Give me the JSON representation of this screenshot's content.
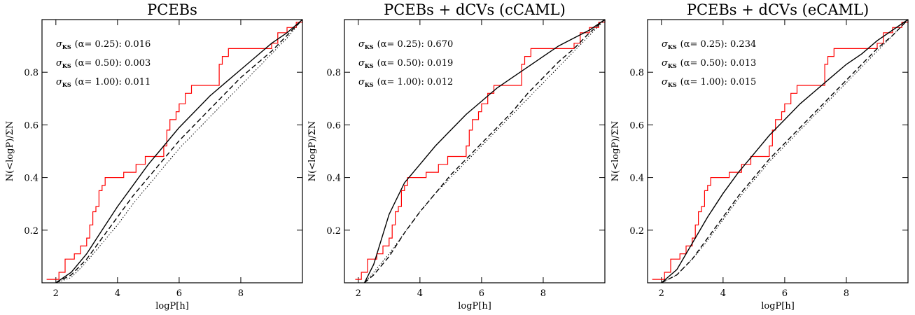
{
  "chart_data": [
    {
      "type": "line",
      "title": "PCEBs",
      "xlabel": "logP[h]",
      "ylabel": "N(<logP)/ΣN",
      "xlim": [
        1.55,
        10
      ],
      "ylim": [
        0,
        1
      ],
      "xticks": [
        2,
        4,
        6,
        8
      ],
      "yticks": [
        0.2,
        0.4,
        0.6,
        0.8
      ],
      "annotations": [
        {
          "symbol": "σ",
          "sub": "KS",
          "text": "(α= 0.25): 0.016"
        },
        {
          "symbol": "σ",
          "sub": "KS",
          "text": "(α= 0.50): 0.003"
        },
        {
          "symbol": "σ",
          "sub": "KS",
          "text": "(α= 1.00): 0.011"
        }
      ],
      "x": [
        2,
        2.5,
        3,
        3.5,
        4,
        4.5,
        5,
        5.5,
        6,
        6.5,
        7,
        7.5,
        8,
        8.5,
        9,
        9.5,
        10
      ],
      "series": [
        {
          "color": "#ff0000",
          "style": "step",
          "x": [
            1.7,
            2.1,
            2.3,
            2.6,
            2.8,
            3.0,
            3.1,
            3.2,
            3.3,
            3.4,
            3.5,
            3.6,
            4.2,
            4.6,
            4.9,
            5.5,
            5.6,
            5.7,
            5.9,
            6.0,
            6.2,
            6.4,
            7.3,
            7.4,
            7.6,
            9.0,
            9.2,
            9.5,
            9.8,
            10
          ],
          "values": [
            0.013,
            0.04,
            0.09,
            0.11,
            0.14,
            0.17,
            0.22,
            0.27,
            0.29,
            0.35,
            0.37,
            0.4,
            0.42,
            0.45,
            0.48,
            0.52,
            0.58,
            0.62,
            0.65,
            0.68,
            0.72,
            0.75,
            0.83,
            0.86,
            0.89,
            0.91,
            0.95,
            0.97,
            0.99,
            1.0
          ]
        },
        {
          "color": "#000000",
          "style": "solid",
          "values": [
            0,
            0.04,
            0.11,
            0.2,
            0.29,
            0.37,
            0.45,
            0.52,
            0.59,
            0.65,
            0.71,
            0.76,
            0.81,
            0.86,
            0.91,
            0.95,
            1.0
          ]
        },
        {
          "color": "#000000",
          "style": "dashed",
          "values": [
            0,
            0.03,
            0.09,
            0.17,
            0.25,
            0.33,
            0.4,
            0.47,
            0.54,
            0.6,
            0.66,
            0.72,
            0.78,
            0.83,
            0.88,
            0.94,
            1.0
          ]
        },
        {
          "color": "#000000",
          "style": "dotted",
          "values": [
            0,
            0.02,
            0.08,
            0.15,
            0.22,
            0.3,
            0.37,
            0.44,
            0.51,
            0.57,
            0.63,
            0.69,
            0.75,
            0.81,
            0.87,
            0.93,
            1.0
          ]
        }
      ]
    },
    {
      "type": "line",
      "title": "PCEBs + dCVs (cCAML)",
      "xlabel": "logP[h]",
      "ylabel": "N(<logP)/ΣN",
      "xlim": [
        1.55,
        10
      ],
      "ylim": [
        0,
        1
      ],
      "xticks": [
        2,
        4,
        6,
        8
      ],
      "yticks": [
        0.2,
        0.4,
        0.6,
        0.8
      ],
      "annotations": [
        {
          "symbol": "σ",
          "sub": "KS",
          "text": "(α= 0.25): 0.670"
        },
        {
          "symbol": "σ",
          "sub": "KS",
          "text": "(α= 0.50): 0.019"
        },
        {
          "symbol": "σ",
          "sub": "KS",
          "text": "(α= 1.00): 0.012"
        }
      ],
      "x": [
        2.2,
        2.5,
        3,
        3.5,
        4,
        4.5,
        5,
        5.5,
        6,
        6.5,
        7,
        7.5,
        8,
        8.5,
        9,
        9.5,
        10
      ],
      "series": [
        {
          "color": "#ff0000",
          "style": "step",
          "x": [
            1.9,
            2.1,
            2.3,
            2.6,
            2.8,
            3.0,
            3.1,
            3.2,
            3.3,
            3.4,
            3.5,
            3.6,
            4.2,
            4.6,
            4.9,
            5.5,
            5.6,
            5.7,
            5.9,
            6.0,
            6.2,
            6.4,
            7.3,
            7.4,
            7.6,
            9.0,
            9.2,
            9.5,
            9.8,
            10
          ],
          "values": [
            0.013,
            0.04,
            0.09,
            0.11,
            0.14,
            0.17,
            0.22,
            0.27,
            0.29,
            0.35,
            0.37,
            0.4,
            0.42,
            0.45,
            0.48,
            0.52,
            0.58,
            0.62,
            0.65,
            0.68,
            0.72,
            0.75,
            0.83,
            0.86,
            0.89,
            0.91,
            0.95,
            0.97,
            0.99,
            1.0
          ]
        },
        {
          "color": "#000000",
          "style": "solid",
          "values": [
            0,
            0.07,
            0.26,
            0.38,
            0.45,
            0.52,
            0.58,
            0.64,
            0.69,
            0.74,
            0.78,
            0.82,
            0.86,
            0.9,
            0.93,
            0.96,
            1.0
          ]
        },
        {
          "color": "#000000",
          "style": "dashed",
          "values": [
            0,
            0.03,
            0.1,
            0.19,
            0.27,
            0.34,
            0.41,
            0.47,
            0.53,
            0.59,
            0.65,
            0.72,
            0.78,
            0.84,
            0.89,
            0.95,
            1.0
          ]
        },
        {
          "color": "#000000",
          "style": "dotted",
          "values": [
            0,
            0.04,
            0.11,
            0.19,
            0.27,
            0.34,
            0.4,
            0.46,
            0.52,
            0.58,
            0.64,
            0.7,
            0.76,
            0.82,
            0.88,
            0.94,
            1.0
          ]
        }
      ]
    },
    {
      "type": "line",
      "title": "PCEBs + dCVs (eCAML)",
      "xlabel": "logP[h]",
      "ylabel": "N(<logP)/ΣN",
      "xlim": [
        1.55,
        10
      ],
      "ylim": [
        0,
        1
      ],
      "xticks": [
        2,
        4,
        6,
        8
      ],
      "yticks": [
        0.2,
        0.4,
        0.6,
        0.8
      ],
      "annotations": [
        {
          "symbol": "σ",
          "sub": "KS",
          "text": "(α= 0.25): 0.234"
        },
        {
          "symbol": "σ",
          "sub": "KS",
          "text": "(α= 0.50): 0.013"
        },
        {
          "symbol": "σ",
          "sub": "KS",
          "text": "(α= 1.00): 0.015"
        }
      ],
      "x": [
        2,
        2.5,
        3,
        3.5,
        4,
        4.5,
        5,
        5.5,
        6,
        6.5,
        7,
        7.5,
        8,
        8.5,
        9,
        9.5,
        10
      ],
      "series": [
        {
          "color": "#ff0000",
          "style": "step",
          "x": [
            1.7,
            2.1,
            2.3,
            2.6,
            2.8,
            3.0,
            3.1,
            3.2,
            3.3,
            3.4,
            3.5,
            3.6,
            4.2,
            4.6,
            4.9,
            5.5,
            5.6,
            5.7,
            5.9,
            6.0,
            6.2,
            6.4,
            7.3,
            7.4,
            7.6,
            9.0,
            9.2,
            9.5,
            9.8,
            10
          ],
          "values": [
            0.013,
            0.04,
            0.09,
            0.11,
            0.14,
            0.17,
            0.22,
            0.27,
            0.29,
            0.35,
            0.37,
            0.4,
            0.42,
            0.45,
            0.48,
            0.52,
            0.58,
            0.62,
            0.65,
            0.68,
            0.72,
            0.75,
            0.83,
            0.86,
            0.89,
            0.91,
            0.95,
            0.97,
            0.99,
            1.0
          ]
        },
        {
          "color": "#000000",
          "style": "solid",
          "values": [
            0,
            0.05,
            0.15,
            0.25,
            0.34,
            0.42,
            0.49,
            0.56,
            0.62,
            0.68,
            0.73,
            0.78,
            0.83,
            0.87,
            0.92,
            0.96,
            1.0
          ]
        },
        {
          "color": "#000000",
          "style": "dashed",
          "values": [
            0,
            0.03,
            0.09,
            0.17,
            0.25,
            0.33,
            0.4,
            0.47,
            0.53,
            0.59,
            0.65,
            0.71,
            0.77,
            0.83,
            0.89,
            0.94,
            1.0
          ]
        },
        {
          "color": "#000000",
          "style": "dotted",
          "values": [
            0,
            0.03,
            0.09,
            0.16,
            0.24,
            0.32,
            0.39,
            0.46,
            0.52,
            0.58,
            0.64,
            0.7,
            0.76,
            0.82,
            0.88,
            0.94,
            1.0
          ]
        }
      ]
    }
  ]
}
